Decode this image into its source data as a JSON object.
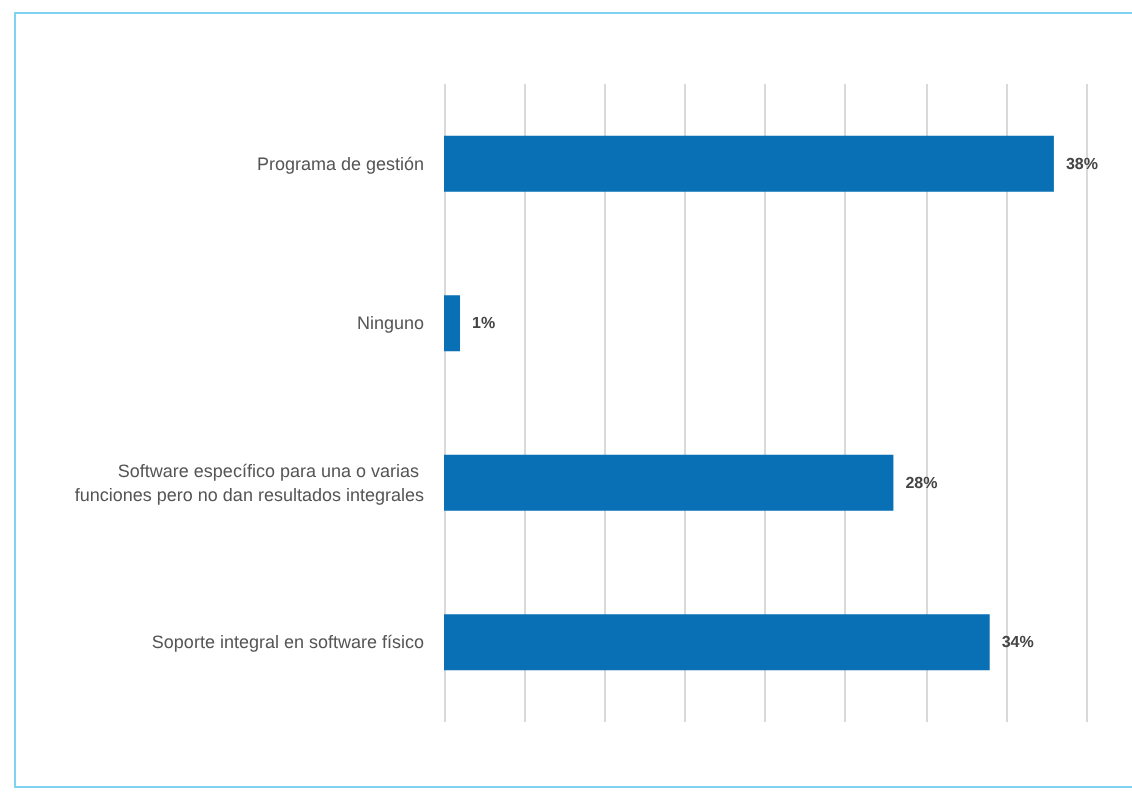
{
  "chart_data": {
    "type": "bar",
    "orientation": "horizontal",
    "categories": [
      "Programa de gestión",
      "Ninguno",
      "Software específico para una o varias funciones pero no dan resultados integrales",
      "Soporte integral en software físico"
    ],
    "values": [
      38,
      1,
      28,
      34
    ],
    "value_labels": [
      "38%",
      "1%",
      "28%",
      "34%"
    ],
    "color": "#0a70b6",
    "xlim": [
      0,
      40
    ],
    "xticks": [
      {
        "value": 0,
        "label": null
      },
      {
        "value": 5,
        "label": null
      },
      {
        "value": 10,
        "label": null
      },
      {
        "value": 15,
        "label": null
      },
      {
        "value": 20,
        "label": null
      },
      {
        "value": 25,
        "label": null
      },
      {
        "value": 30,
        "label": null
      },
      {
        "value": 35,
        "label": null
      },
      {
        "value": 40,
        "label": null
      }
    ],
    "tick_labels": "y",
    "grid": "x"
  }
}
